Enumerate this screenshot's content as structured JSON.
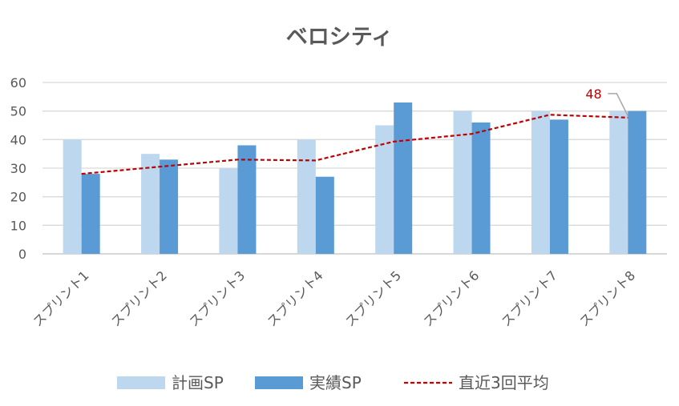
{
  "chart_data": {
    "type": "bar",
    "title": "ベロシティ",
    "categories": [
      "スプリント1",
      "スプリント2",
      "スプリント3",
      "スプリント4",
      "スプリント5",
      "スプリント6",
      "スプリント7",
      "スプリント8"
    ],
    "series": [
      {
        "name": "計画SP",
        "type": "bar",
        "color": "#bdd7ee",
        "values": [
          40,
          35,
          30,
          40,
          45,
          50,
          50,
          50
        ]
      },
      {
        "name": "実績SP",
        "type": "bar",
        "color": "#5b9bd5",
        "values": [
          28,
          33,
          38,
          27,
          53,
          46,
          47,
          50
        ]
      },
      {
        "name": "直近3回平均",
        "type": "line",
        "style": "dashed",
        "color": "#c00000",
        "values": [
          28,
          30.5,
          33,
          32.7,
          39.3,
          42,
          48.7,
          47.7
        ]
      }
    ],
    "ylim": [
      0,
      60
    ],
    "yticks": [
      0,
      10,
      20,
      30,
      40,
      50,
      60
    ],
    "grid": true,
    "legend": "bottom",
    "annotation": {
      "series": "直近3回平均",
      "category": "スプリント8",
      "text": "48"
    }
  }
}
